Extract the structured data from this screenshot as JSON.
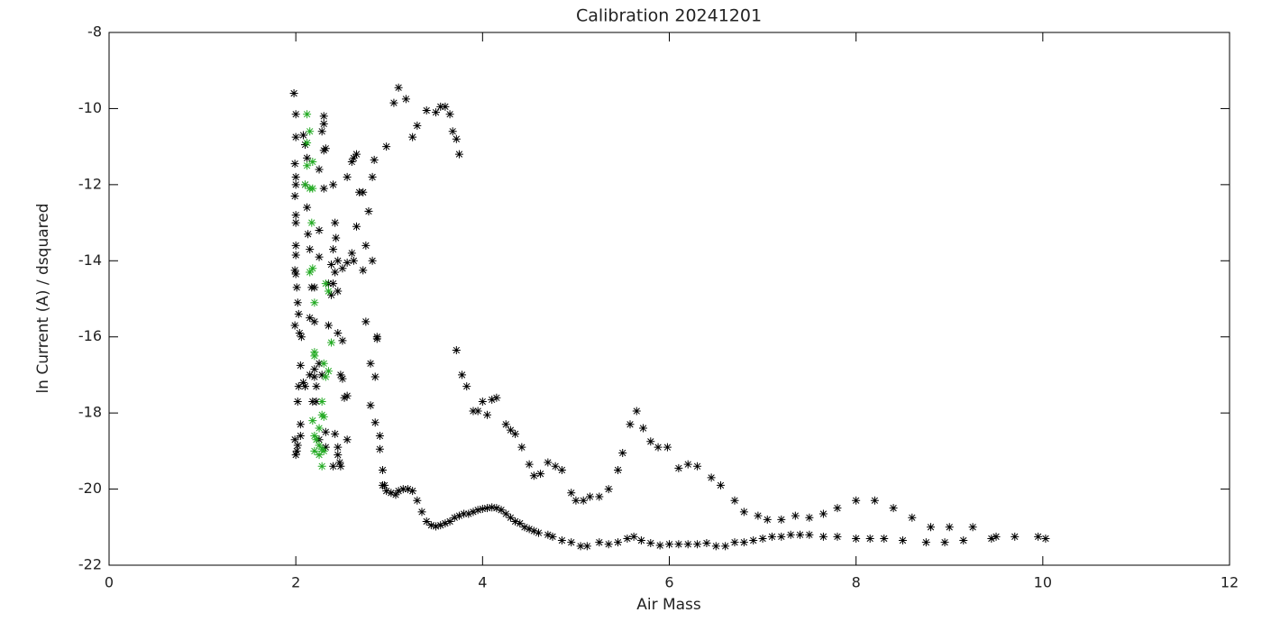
{
  "chart_data": {
    "type": "scatter",
    "title": "Calibration 20241201",
    "xlabel": "Air Mass",
    "ylabel": "ln Current (A) / dsquared",
    "xlim": [
      0,
      12
    ],
    "xticks": [
      0,
      2,
      4,
      6,
      8,
      10,
      12
    ],
    "ylim": [
      -22,
      -8
    ],
    "yticks": [
      -22,
      -20,
      -18,
      -16,
      -14,
      -12,
      -10,
      -8
    ],
    "series": [
      {
        "color": "#000000",
        "x": [
          2.93,
          2.97,
          3.02,
          3.07,
          3.1,
          3.15,
          3.2,
          3.25,
          3.3,
          3.35,
          3.4,
          3.45,
          3.5,
          3.55,
          3.6,
          3.65,
          3.7,
          3.75,
          3.8,
          3.85,
          3.9,
          3.95,
          4.0,
          4.05,
          4.1,
          4.15,
          4.2,
          4.25,
          4.3,
          4.35,
          4.4,
          4.45,
          4.5,
          4.55,
          4.6,
          4.7,
          4.75,
          4.85,
          4.95,
          5.05,
          5.12,
          5.25,
          5.35,
          5.45,
          5.55,
          5.62,
          5.7,
          5.8,
          5.9,
          6.0,
          6.1,
          6.2,
          6.3,
          6.4,
          6.5,
          6.6,
          6.7,
          6.8,
          6.9,
          7.0,
          7.1,
          7.2,
          7.3,
          7.4,
          7.5,
          7.65,
          7.8,
          8.0,
          8.15,
          8.3,
          8.5,
          8.75,
          8.95,
          9.15,
          9.45,
          9.5,
          9.7,
          9.95,
          10.03,
          3.72,
          3.78,
          3.83,
          3.9,
          3.95,
          4.0,
          4.05,
          4.1,
          4.15,
          4.25,
          4.3,
          4.35,
          4.42,
          4.5,
          4.55,
          4.62,
          4.7,
          4.78,
          4.85,
          4.95,
          5.0,
          5.08,
          5.15,
          5.25,
          5.35,
          5.45,
          5.5,
          5.58,
          5.65,
          5.72,
          5.8,
          5.88,
          5.98,
          6.1,
          6.2,
          6.3,
          6.45,
          6.55,
          6.7,
          6.8,
          6.95,
          7.05,
          7.2,
          7.35,
          7.5,
          7.65,
          7.8,
          8.0,
          8.2,
          8.4,
          8.6,
          8.8,
          9.0,
          9.25,
          2.97,
          3.05,
          3.1,
          3.18,
          3.25,
          3.3,
          3.4,
          3.5,
          3.55,
          3.6,
          3.65,
          3.68,
          3.72,
          3.75,
          2.55,
          2.6,
          2.62,
          2.65,
          2.68,
          2.72,
          2.78,
          2.82,
          2.84,
          2.75,
          2.72,
          2.82,
          2.75,
          2.87,
          2.87,
          2.8,
          2.85,
          2.8,
          2.85,
          2.9,
          2.9,
          2.93,
          2.95,
          2.65,
          2.6,
          2.62,
          2.55,
          2.5,
          1.98,
          2.0,
          2.0,
          1.99,
          2.0,
          2.0,
          1.99,
          2.0,
          2.0,
          2.0,
          2.0,
          1.99,
          2.0,
          2.01,
          2.02,
          2.03,
          1.99,
          2.04,
          2.06,
          2.05,
          2.03,
          2.02,
          2.05,
          2.05,
          2.02,
          2.0,
          2.01,
          1.99,
          2.08,
          2.1,
          2.08,
          2.1,
          2.12,
          2.1,
          2.12,
          2.13,
          2.15,
          2.15,
          2.2,
          2.15,
          2.18,
          2.2,
          2.2,
          2.17,
          2.2,
          2.22,
          2.25,
          2.25,
          2.25,
          2.3,
          2.3,
          2.28,
          2.3,
          2.32,
          2.3,
          2.35,
          2.38,
          2.38,
          2.4,
          2.42,
          2.4,
          2.42,
          2.43,
          2.45,
          2.45,
          2.4,
          2.35,
          2.45,
          2.5,
          2.25,
          2.28,
          2.48,
          2.5,
          2.52,
          2.55,
          2.42,
          2.45,
          2.45,
          2.47,
          2.48,
          2.55,
          2.4,
          2.32,
          2.32,
          2.25,
          2.22
        ],
        "values": [
          -19.9,
          -20.05,
          -20.1,
          -20.15,
          -20.05,
          -20.0,
          -20.0,
          -20.05,
          -20.3,
          -20.6,
          -20.85,
          -20.95,
          -20.98,
          -20.95,
          -20.9,
          -20.85,
          -20.75,
          -20.7,
          -20.65,
          -20.65,
          -20.6,
          -20.55,
          -20.52,
          -20.5,
          -20.48,
          -20.5,
          -20.55,
          -20.65,
          -20.75,
          -20.85,
          -20.9,
          -21.0,
          -21.05,
          -21.1,
          -21.15,
          -21.2,
          -21.25,
          -21.35,
          -21.4,
          -21.5,
          -21.5,
          -21.4,
          -21.45,
          -21.4,
          -21.3,
          -21.25,
          -21.35,
          -21.42,
          -21.48,
          -21.45,
          -21.45,
          -21.45,
          -21.45,
          -21.42,
          -21.5,
          -21.5,
          -21.4,
          -21.4,
          -21.35,
          -21.3,
          -21.25,
          -21.25,
          -21.2,
          -21.2,
          -21.2,
          -21.25,
          -21.25,
          -21.3,
          -21.3,
          -21.3,
          -21.35,
          -21.4,
          -21.4,
          -21.35,
          -21.3,
          -21.25,
          -21.25,
          -21.25,
          -21.3,
          -16.35,
          -17.0,
          -17.3,
          -17.95,
          -17.95,
          -17.7,
          -18.05,
          -17.65,
          -17.6,
          -18.3,
          -18.45,
          -18.55,
          -18.9,
          -19.35,
          -19.65,
          -19.6,
          -19.3,
          -19.4,
          -19.5,
          -20.1,
          -20.3,
          -20.3,
          -20.2,
          -20.2,
          -20.0,
          -19.5,
          -19.05,
          -18.3,
          -17.95,
          -18.4,
          -18.75,
          -18.9,
          -18.9,
          -19.45,
          -19.35,
          -19.4,
          -19.7,
          -19.9,
          -20.3,
          -20.6,
          -20.7,
          -20.8,
          -20.8,
          -20.7,
          -20.75,
          -20.65,
          -20.5,
          -20.3,
          -20.3,
          -20.5,
          -20.75,
          -21.0,
          -21.0,
          -21.0,
          -11.0,
          -9.85,
          -9.45,
          -9.75,
          -10.75,
          -10.45,
          -10.05,
          -10.1,
          -9.95,
          -9.95,
          -10.15,
          -10.6,
          -10.8,
          -11.2,
          -11.8,
          -11.4,
          -11.3,
          -11.2,
          -12.2,
          -12.2,
          -12.7,
          -11.8,
          -11.35,
          -13.6,
          -14.25,
          -14.0,
          -15.6,
          -16.0,
          -16.05,
          -16.7,
          -17.05,
          -17.8,
          -18.25,
          -18.6,
          -18.95,
          -19.5,
          -19.9,
          -13.1,
          -13.8,
          -14.0,
          -14.05,
          -14.2,
          -9.6,
          -10.15,
          -10.75,
          -11.45,
          -11.8,
          -12.0,
          -12.3,
          -12.8,
          -13.0,
          -13.6,
          -13.85,
          -14.25,
          -14.35,
          -14.7,
          -15.1,
          -15.4,
          -15.7,
          -15.9,
          -16.0,
          -16.75,
          -17.3,
          -17.7,
          -18.3,
          -18.6,
          -18.85,
          -19.1,
          -19.0,
          -18.7,
          -17.2,
          -17.3,
          -10.7,
          -10.95,
          -11.3,
          -12.0,
          -12.6,
          -13.3,
          -13.7,
          -15.5,
          -15.6,
          -17.0,
          -17.7,
          -17.05,
          -16.85,
          -14.7,
          -14.7,
          -17.3,
          -13.2,
          -13.9,
          -11.6,
          -10.2,
          -10.4,
          -10.6,
          -11.1,
          -11.05,
          -12.1,
          -14.6,
          -14.9,
          -14.1,
          -14.6,
          -14.3,
          -13.7,
          -13.0,
          -13.4,
          -14.0,
          -14.8,
          -12.0,
          -15.7,
          -15.9,
          -16.1,
          -16.7,
          -17.0,
          -17.0,
          -17.1,
          -17.6,
          -17.55,
          -18.55,
          -18.9,
          -19.1,
          -19.3,
          -19.4,
          -18.7,
          -19.4,
          -18.5,
          -18.9,
          -18.7,
          -17.7
        ]
      },
      {
        "color": "#22aa22",
        "x": [
          2.12,
          2.15,
          2.12,
          2.12,
          2.18,
          2.1,
          2.15,
          2.18,
          2.17,
          2.18,
          2.15,
          2.2,
          2.32,
          2.35,
          2.2,
          2.38,
          2.2,
          2.3,
          2.35,
          2.32,
          2.28,
          2.28,
          2.3,
          2.18,
          2.25,
          2.2,
          2.22,
          2.25,
          2.28,
          2.2,
          2.25,
          2.3,
          2.28
        ],
        "values": [
          -10.15,
          -10.6,
          -10.9,
          -11.5,
          -11.4,
          -12.0,
          -12.1,
          -12.1,
          -13.0,
          -14.2,
          -14.3,
          -15.1,
          -14.6,
          -14.8,
          -16.4,
          -16.15,
          -16.5,
          -16.7,
          -16.9,
          -17.05,
          -17.7,
          -18.05,
          -18.1,
          -18.2,
          -18.4,
          -18.6,
          -18.7,
          -18.85,
          -18.95,
          -19.0,
          -19.1,
          -19.0,
          -19.4
        ]
      }
    ]
  }
}
